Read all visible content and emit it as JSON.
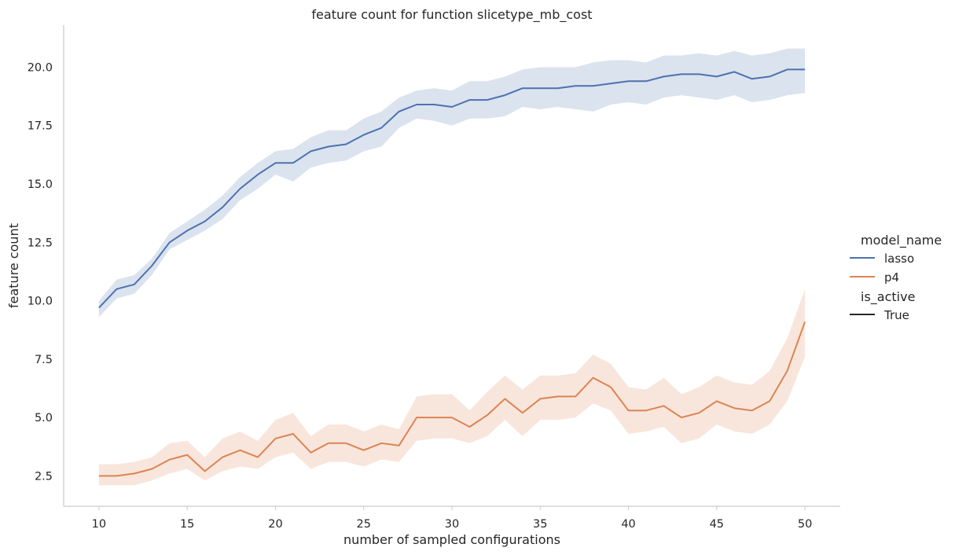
{
  "chart_data": {
    "type": "line",
    "title": "feature count for function slicetype_mb_cost",
    "xlabel": "number of sampled configurations",
    "ylabel": "feature count",
    "xlim": [
      8,
      52
    ],
    "ylim": [
      1.2,
      21.8
    ],
    "xticks": [
      10,
      15,
      20,
      25,
      30,
      35,
      40,
      45,
      50
    ],
    "xtick_labels": [
      "10",
      "15",
      "20",
      "25",
      "30",
      "35",
      "40",
      "45",
      "50"
    ],
    "yticks": [
      2.5,
      5.0,
      7.5,
      10.0,
      12.5,
      15.0,
      17.5,
      20.0
    ],
    "ytick_labels": [
      "2.5",
      "5.0",
      "7.5",
      "10.0",
      "12.5",
      "15.0",
      "17.5",
      "20.0"
    ],
    "grid": false,
    "legend_placement": "right",
    "legend": {
      "title": "model_name",
      "entries": [
        "lasso",
        "p4"
      ],
      "style_title": "is_active",
      "style_entries": [
        "True"
      ]
    },
    "x": [
      10,
      11,
      12,
      13,
      14,
      15,
      16,
      17,
      18,
      19,
      20,
      21,
      22,
      23,
      24,
      25,
      26,
      27,
      28,
      29,
      30,
      31,
      32,
      33,
      34,
      35,
      36,
      37,
      38,
      39,
      40,
      41,
      42,
      43,
      44,
      45,
      46,
      47,
      48,
      49,
      50
    ],
    "series": [
      {
        "name": "lasso",
        "color": "#4c72b0",
        "values": [
          9.7,
          10.5,
          10.7,
          11.5,
          12.5,
          13.0,
          13.4,
          14.0,
          14.8,
          15.4,
          15.9,
          15.9,
          16.4,
          16.6,
          16.7,
          17.1,
          17.4,
          18.1,
          18.4,
          18.4,
          18.3,
          18.6,
          18.6,
          18.8,
          19.1,
          19.1,
          19.1,
          19.2,
          19.2,
          19.3,
          19.4,
          19.4,
          19.6,
          19.7,
          19.7,
          19.6,
          19.8,
          19.5,
          19.6,
          19.9,
          19.9
        ],
        "lower": [
          9.3,
          10.1,
          10.3,
          11.1,
          12.2,
          12.6,
          13.0,
          13.5,
          14.3,
          14.8,
          15.4,
          15.1,
          15.7,
          15.9,
          16.0,
          16.4,
          16.6,
          17.4,
          17.8,
          17.7,
          17.5,
          17.8,
          17.8,
          17.9,
          18.3,
          18.2,
          18.3,
          18.2,
          18.1,
          18.4,
          18.5,
          18.4,
          18.7,
          18.8,
          18.7,
          18.6,
          18.8,
          18.5,
          18.6,
          18.8,
          18.9
        ],
        "upper": [
          10.0,
          10.9,
          11.1,
          11.8,
          12.9,
          13.4,
          13.9,
          14.5,
          15.3,
          15.9,
          16.4,
          16.5,
          17.0,
          17.3,
          17.3,
          17.8,
          18.1,
          18.7,
          19.0,
          19.1,
          19.0,
          19.4,
          19.4,
          19.6,
          19.9,
          20.0,
          20.0,
          20.0,
          20.2,
          20.3,
          20.3,
          20.2,
          20.5,
          20.5,
          20.6,
          20.5,
          20.7,
          20.5,
          20.6,
          20.8,
          20.8
        ]
      },
      {
        "name": "p4",
        "color": "#dd8452",
        "values": [
          2.5,
          2.5,
          2.6,
          2.8,
          3.2,
          3.4,
          2.7,
          3.3,
          3.6,
          3.3,
          4.1,
          4.3,
          3.5,
          3.9,
          3.9,
          3.6,
          3.9,
          3.8,
          5.0,
          5.0,
          5.0,
          4.6,
          5.1,
          5.8,
          5.2,
          5.8,
          5.9,
          5.9,
          6.7,
          6.3,
          5.3,
          5.3,
          5.5,
          5.0,
          5.2,
          5.7,
          5.4,
          5.3,
          5.7,
          7.0,
          9.1
        ],
        "lower": [
          2.1,
          2.1,
          2.1,
          2.3,
          2.6,
          2.8,
          2.3,
          2.7,
          2.9,
          2.8,
          3.3,
          3.5,
          2.8,
          3.1,
          3.1,
          2.9,
          3.2,
          3.1,
          4.0,
          4.1,
          4.1,
          3.9,
          4.2,
          4.9,
          4.2,
          4.9,
          4.9,
          5.0,
          5.6,
          5.3,
          4.3,
          4.4,
          4.6,
          3.9,
          4.1,
          4.7,
          4.4,
          4.3,
          4.7,
          5.7,
          7.6
        ],
        "upper": [
          3.0,
          3.0,
          3.1,
          3.3,
          3.9,
          4.0,
          3.3,
          4.1,
          4.4,
          4.0,
          4.9,
          5.2,
          4.2,
          4.7,
          4.7,
          4.4,
          4.7,
          4.5,
          5.9,
          6.0,
          6.0,
          5.3,
          6.1,
          6.8,
          6.2,
          6.8,
          6.8,
          6.9,
          7.7,
          7.3,
          6.3,
          6.2,
          6.7,
          6.0,
          6.3,
          6.8,
          6.5,
          6.4,
          7.0,
          8.4,
          10.5
        ]
      }
    ]
  }
}
